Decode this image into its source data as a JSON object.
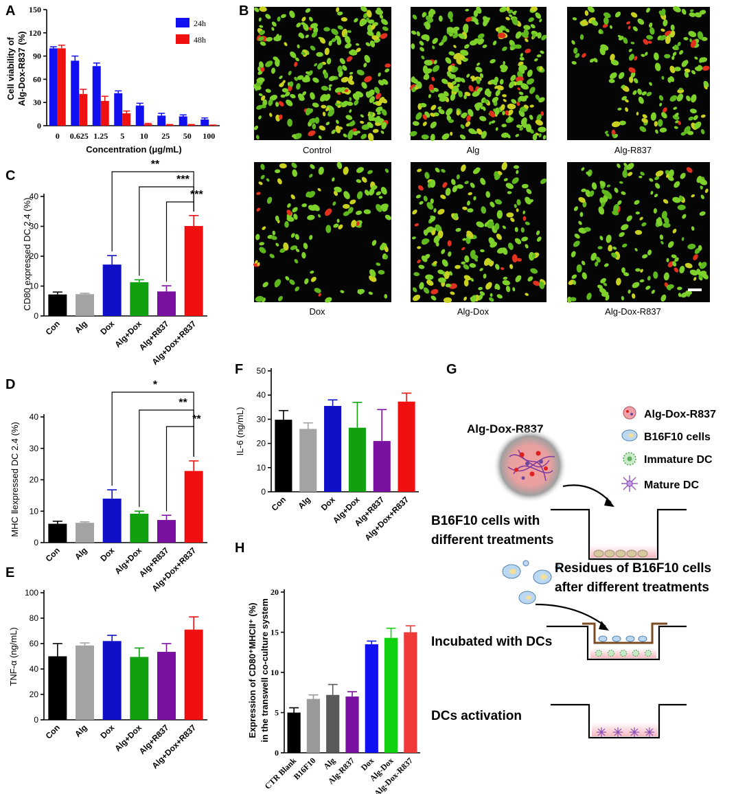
{
  "panel_labels": {
    "A": "A",
    "B": "B",
    "C": "C",
    "D": "D",
    "E": "E",
    "F": "F",
    "G": "G",
    "H": "H"
  },
  "micrographs": {
    "labels": [
      "Control",
      "Alg",
      "Alg-R837",
      "Dox",
      "Alg-Dox",
      "Alg-Dox-R837"
    ],
    "cell_color_live": "#7ed02a",
    "cell_color_dead": "#e0321e",
    "background": "#050505"
  },
  "schematic": {
    "particle_title": "Alg-Dox-R837",
    "legend": [
      "Alg-Dox-R837",
      "B16F10 cells",
      "Immature DC",
      "Mature DC"
    ],
    "step1_line1": "B16F10 cells  with",
    "step1_line2": "different treatments",
    "step2_line1": "Residues of B16F10 cells",
    "step2_line2": "after different treatments",
    "step3": "Incubated with DCs",
    "step4": "DCs activation"
  },
  "chart_data": [
    {
      "id": "A",
      "type": "bar",
      "categories": [
        "0",
        "0.625",
        "1.25",
        "5",
        "10",
        "25",
        "50",
        "100"
      ],
      "series": [
        {
          "name": "24h",
          "color": "#1010f0",
          "values": [
            100,
            84,
            77,
            42,
            26,
            13,
            12,
            8
          ],
          "errors": [
            2,
            6,
            4,
            3,
            3,
            3,
            2,
            2
          ]
        },
        {
          "name": "48h",
          "color": "#f01010",
          "values": [
            100,
            41,
            32,
            16,
            2,
            1,
            1,
            0.5
          ],
          "errors": [
            4,
            6,
            6,
            3,
            1,
            0.5,
            0.5,
            0.3
          ]
        }
      ],
      "xlabel": "Concentration (μg/mL)",
      "ylabel_line1": "Cell viability of",
      "ylabel_line2": "Alg-Dox-R837 (%)",
      "ylim": [
        0,
        150
      ],
      "yticks": [
        "0",
        "30",
        "60",
        "90",
        "120",
        "150"
      ],
      "legend_position": "top-right"
    },
    {
      "id": "C",
      "type": "bar",
      "categories": [
        "Con",
        "Alg",
        "Dox",
        "Alg+Dox",
        "Alg+R837",
        "Alg+Dox+R837"
      ],
      "values": [
        7.2,
        7.3,
        17.2,
        11.3,
        8.2,
        30.1
      ],
      "errors": [
        0.8,
        0.3,
        3.0,
        0.8,
        1.9,
        3.5
      ],
      "colors": [
        "#000000",
        "#a3a3a3",
        "#1010c8",
        "#10a010",
        "#7a10a0",
        "#f01010"
      ],
      "ylabel": "CD80 expressed DC 2.4 (%)",
      "ylim": [
        0,
        40
      ],
      "yticks": [
        "0",
        "10",
        "20",
        "30",
        "40"
      ],
      "significance": [
        "**",
        "***",
        "***"
      ]
    },
    {
      "id": "D",
      "type": "bar",
      "categories": [
        "Con",
        "Alg",
        "Dox",
        "Alg+Dox",
        "Alg+R837",
        "Alg+Dox+R837"
      ],
      "values": [
        6.0,
        6.3,
        14.0,
        9.2,
        7.2,
        22.8
      ],
      "errors": [
        0.8,
        0.3,
        2.8,
        0.8,
        1.5,
        3.2
      ],
      "colors": [
        "#000000",
        "#a3a3a3",
        "#1010c8",
        "#10a010",
        "#7a10a0",
        "#f01010"
      ],
      "ylabel": "MHC Ⅱexpressed DC 2.4 (%)",
      "ylim": [
        0,
        40
      ],
      "yticks": [
        "0",
        "10",
        "20",
        "30",
        "40"
      ],
      "significance": [
        "*",
        "**",
        "**"
      ]
    },
    {
      "id": "E",
      "type": "bar",
      "categories": [
        "Con",
        "Alg",
        "Dox",
        "Alg+Dox",
        "Alg+R837",
        "Alg+Dox+R837"
      ],
      "values": [
        50,
        58.5,
        62,
        49.5,
        53.5,
        71
      ],
      "errors": [
        10,
        2,
        4.5,
        7,
        6.5,
        10
      ],
      "colors": [
        "#000000",
        "#a3a3a3",
        "#1010c8",
        "#10a010",
        "#7a10a0",
        "#f01010"
      ],
      "ylabel": "TNF-α (ng/mL)",
      "ylim": [
        0,
        100
      ],
      "yticks": [
        "0",
        "20",
        "40",
        "60",
        "80",
        "100"
      ]
    },
    {
      "id": "F",
      "type": "bar",
      "categories": [
        "Con",
        "Alg",
        "Dox",
        "Alg+Dox",
        "Alg+R837",
        "Alg+Dox+R837"
      ],
      "values": [
        29.8,
        26,
        35.5,
        26.5,
        21,
        37.3
      ],
      "errors": [
        3.8,
        2.5,
        2.5,
        10.5,
        13,
        3.5
      ],
      "colors": [
        "#000000",
        "#a3a3a3",
        "#1010c8",
        "#10a010",
        "#7a10a0",
        "#f01010"
      ],
      "ylabel": "IL-6 (ng/mL)",
      "ylim": [
        0,
        50
      ],
      "yticks": [
        "0",
        "10",
        "20",
        "30",
        "40",
        "50"
      ]
    },
    {
      "id": "H",
      "type": "bar",
      "categories": [
        "CTR Blank",
        "B16F10",
        "Alg",
        "Alg-R837",
        "Dox",
        "Alg-Dox",
        "Alg-Dox-R837"
      ],
      "values": [
        5.0,
        6.7,
        7.2,
        7.0,
        13.5,
        14.3,
        15.0
      ],
      "errors": [
        0.6,
        0.5,
        1.3,
        0.6,
        0.4,
        1.2,
        0.8
      ],
      "colors": [
        "#000000",
        "#9a9a9a",
        "#5a5a5a",
        "#7a10a0",
        "#1010f0",
        "#10d010",
        "#f03a3a"
      ],
      "ylabel_line1": "Expression of CD80⁺MHCII⁺ (%)",
      "ylabel_line2": "in the transwell co-culture system",
      "ylim": [
        0,
        20
      ],
      "yticks": [
        "0",
        "5",
        "10",
        "15",
        "20"
      ]
    }
  ]
}
